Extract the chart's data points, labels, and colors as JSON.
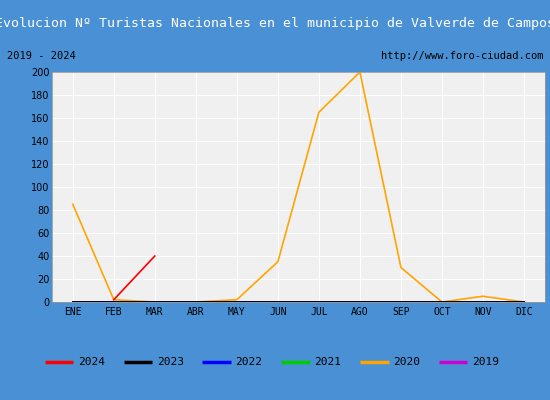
{
  "title": "Evolucion Nº Turistas Nacionales en el municipio de Valverde de Campos",
  "subtitle_left": "2019 - 2024",
  "subtitle_right": "http://www.foro-ciudad.com",
  "months": [
    "ENE",
    "FEB",
    "MAR",
    "ABR",
    "MAY",
    "JUN",
    "JUL",
    "AGO",
    "SEP",
    "OCT",
    "NOV",
    "DIC"
  ],
  "ylim": [
    0,
    200
  ],
  "yticks": [
    0,
    20,
    40,
    60,
    80,
    100,
    120,
    140,
    160,
    180,
    200
  ],
  "series": {
    "2024": {
      "color": "#ff0000",
      "linewidth": 1.2,
      "values": [
        null,
        2,
        40,
        null,
        null,
        null,
        null,
        null,
        null,
        null,
        null,
        null
      ]
    },
    "2023": {
      "color": "#000000",
      "linewidth": 1.2,
      "values": [
        0,
        0,
        0,
        0,
        0,
        0,
        0,
        0,
        0,
        0,
        0,
        0
      ]
    },
    "2022": {
      "color": "#0000ff",
      "linewidth": 1.2,
      "values": [
        0,
        0,
        0,
        0,
        0,
        0,
        0,
        0,
        0,
        0,
        0,
        0
      ]
    },
    "2021": {
      "color": "#00cc00",
      "linewidth": 1.2,
      "values": [
        0,
        0,
        0,
        0,
        0,
        0,
        0,
        0,
        0,
        0,
        0,
        0
      ]
    },
    "2020": {
      "color": "#ffa500",
      "linewidth": 1.2,
      "values": [
        85,
        2,
        0,
        0,
        2,
        35,
        165,
        200,
        30,
        0,
        5,
        0
      ]
    },
    "2019": {
      "color": "#cc00cc",
      "linewidth": 1.2,
      "values": [
        0,
        0,
        0,
        0,
        0,
        0,
        0,
        0,
        0,
        0,
        0,
        0
      ]
    }
  },
  "title_bg_color": "#4a90d4",
  "title_font_color": "#ffffff",
  "title_fontsize": 9.5,
  "plot_bg_color": "#f0f0f0",
  "grid_color": "#ffffff",
  "outer_border_color": "#4a90d4",
  "subtitle_fontsize": 7.5,
  "tick_fontsize": 7,
  "legend_order": [
    "2024",
    "2023",
    "2022",
    "2021",
    "2020",
    "2019"
  ]
}
